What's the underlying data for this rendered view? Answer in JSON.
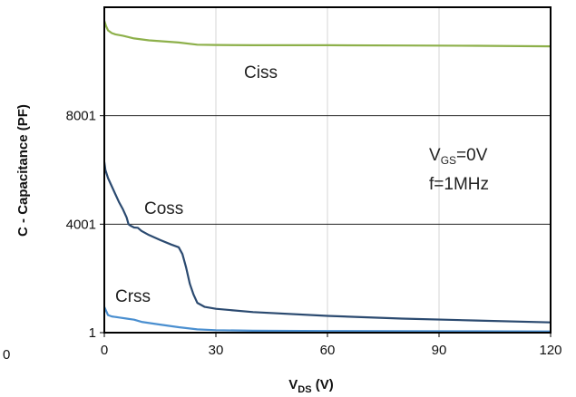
{
  "chart_data": {
    "type": "line",
    "xlabel_main": "V",
    "xlabel_sub": "DS",
    "xlabel_unit": " (V)",
    "ylabel": "C - Capacitance (PF)",
    "stray_label": "0",
    "xlim": [
      0,
      120
    ],
    "ylim": [
      1,
      12001
    ],
    "x_ticks": [
      0,
      30,
      60,
      90,
      120
    ],
    "y_ticks": [
      1,
      4001,
      8001
    ],
    "grid": true,
    "series": [
      {
        "name": "Ciss",
        "color": "#8db04a",
        "points": [
          [
            0,
            11500
          ],
          [
            0.5,
            11300
          ],
          [
            1,
            11150
          ],
          [
            2,
            11050
          ],
          [
            3,
            11000
          ],
          [
            5,
            10950
          ],
          [
            8,
            10850
          ],
          [
            12,
            10780
          ],
          [
            20,
            10700
          ],
          [
            25,
            10620
          ],
          [
            30,
            10610
          ],
          [
            40,
            10600
          ],
          [
            60,
            10600
          ],
          [
            80,
            10590
          ],
          [
            100,
            10580
          ],
          [
            120,
            10560
          ]
        ]
      },
      {
        "name": "Coss",
        "color": "#2b4a70",
        "points": [
          [
            0,
            6300
          ],
          [
            0.3,
            6000
          ],
          [
            1,
            5700
          ],
          [
            2,
            5400
          ],
          [
            3,
            5100
          ],
          [
            4,
            4800
          ],
          [
            5,
            4550
          ],
          [
            6,
            4250
          ],
          [
            6.5,
            4000
          ],
          [
            7,
            3950
          ],
          [
            8,
            3880
          ],
          [
            9,
            3870
          ],
          [
            10,
            3750
          ],
          [
            12,
            3600
          ],
          [
            15,
            3420
          ],
          [
            18,
            3250
          ],
          [
            20,
            3150
          ],
          [
            21,
            2900
          ],
          [
            22,
            2400
          ],
          [
            23,
            1800
          ],
          [
            24,
            1400
          ],
          [
            25,
            1100
          ],
          [
            27,
            950
          ],
          [
            30,
            880
          ],
          [
            40,
            760
          ],
          [
            60,
            620
          ],
          [
            80,
            520
          ],
          [
            100,
            450
          ],
          [
            120,
            380
          ]
        ]
      },
      {
        "name": "Crss",
        "color": "#4a8fd0",
        "points": [
          [
            0,
            950
          ],
          [
            0.5,
            800
          ],
          [
            1,
            650
          ],
          [
            2,
            600
          ],
          [
            4,
            560
          ],
          [
            6,
            520
          ],
          [
            8,
            480
          ],
          [
            10,
            400
          ],
          [
            15,
            300
          ],
          [
            20,
            200
          ],
          [
            25,
            120
          ],
          [
            30,
            90
          ],
          [
            40,
            70
          ],
          [
            60,
            60
          ],
          [
            80,
            55
          ],
          [
            100,
            50
          ],
          [
            120,
            45
          ]
        ]
      }
    ],
    "annotations": [
      {
        "text": "Ciss"
      },
      {
        "text": "Coss"
      },
      {
        "text": "Crss"
      },
      {
        "main": "V",
        "sub": "GS",
        "rest": "=0V"
      },
      {
        "text": "f=1MHz"
      }
    ]
  }
}
